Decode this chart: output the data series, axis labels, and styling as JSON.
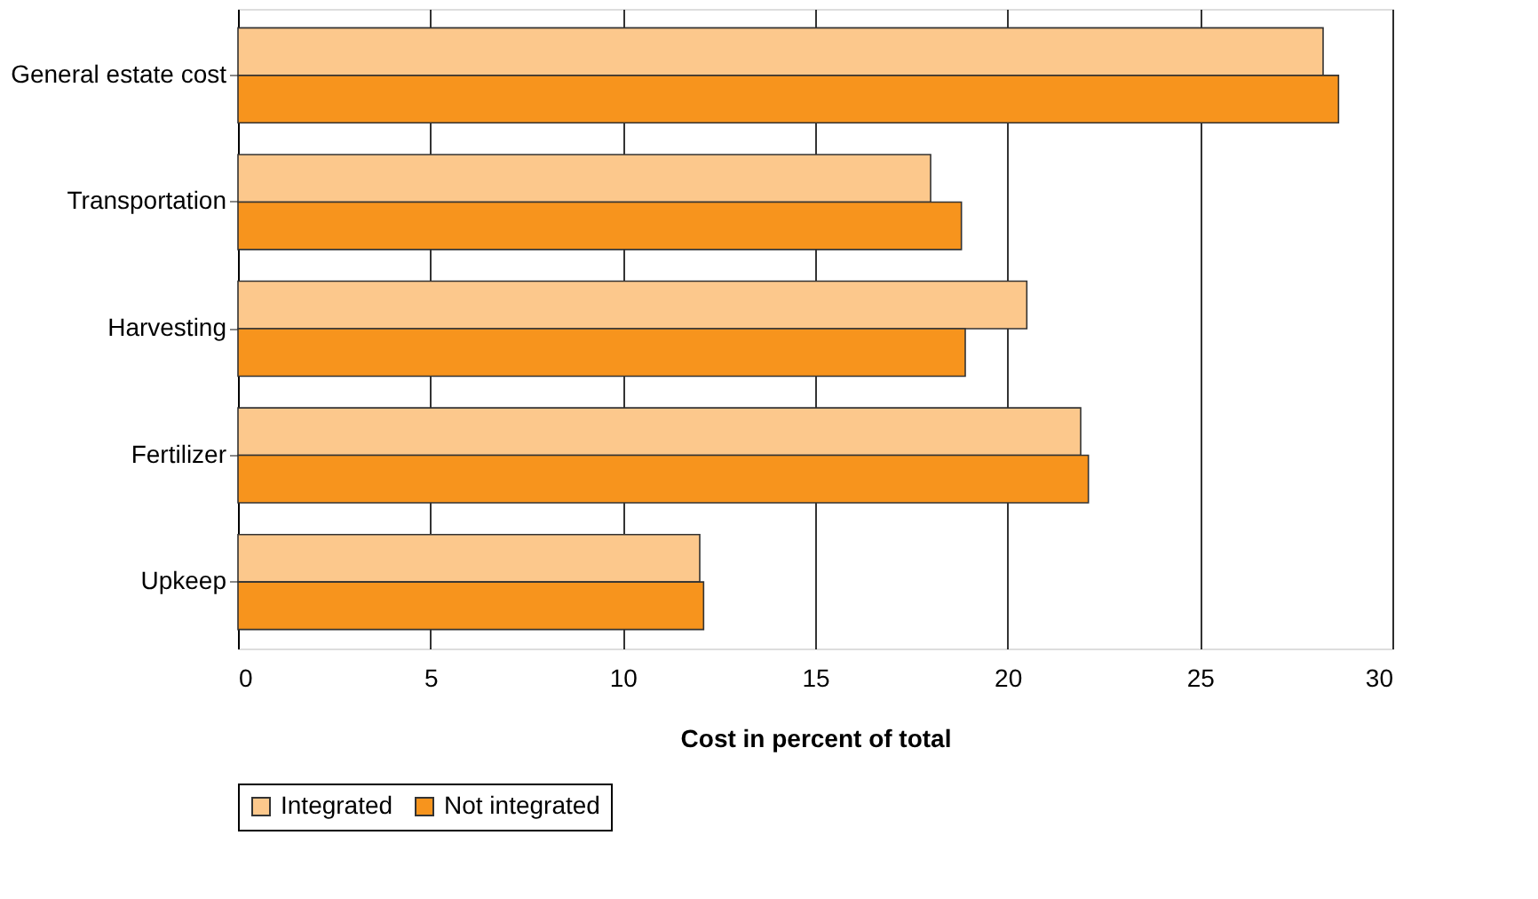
{
  "chart_data": {
    "type": "bar",
    "orientation": "horizontal",
    "xlabel": "Cost in percent of total",
    "categories": [
      "General estate cost",
      "Transportation",
      "Harvesting",
      "Fertilizer",
      "Upkeep"
    ],
    "series": [
      {
        "name": "Integrated",
        "color": "#fcc88c",
        "values": [
          28.2,
          18.0,
          20.5,
          21.9,
          12.0
        ]
      },
      {
        "name": "Not integrated",
        "color": "#f7941d",
        "values": [
          28.6,
          18.8,
          18.9,
          22.1,
          12.1
        ]
      }
    ],
    "xlim": [
      0,
      30
    ],
    "xticks": [
      0,
      5,
      10,
      15,
      20,
      25,
      30
    ],
    "grid": "x",
    "legend": "bottom"
  }
}
